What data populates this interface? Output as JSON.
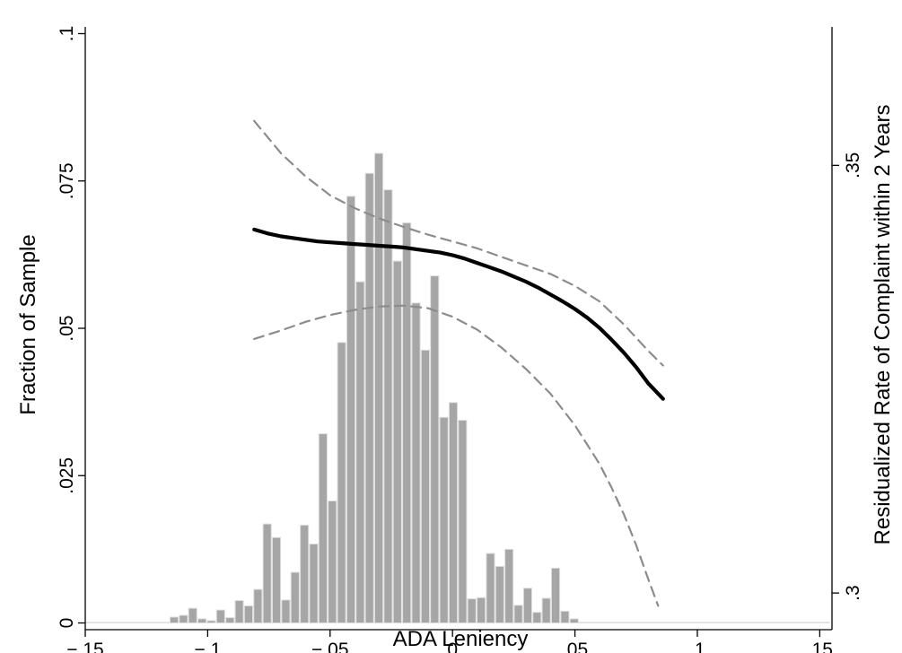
{
  "chart_data": {
    "type": "bar",
    "xlabel": "ADA Leniency",
    "ylabel": "Fraction of Sample",
    "y2label": "Residualized Rate of Complaint within 2 Years",
    "xlim": [
      -0.15,
      0.155
    ],
    "ylim": [
      0,
      0.1
    ],
    "y2lim": [
      0.2965,
      0.3654
    ],
    "x_ticks": [
      -0.15,
      -0.1,
      -0.05,
      0,
      0.05,
      0.1,
      0.15
    ],
    "x_tick_labels": [
      "−.15",
      "−.1",
      "−.05",
      "0",
      ".05",
      ".1",
      ".15"
    ],
    "y_ticks": [
      0,
      0.025,
      0.05,
      0.075,
      0.1
    ],
    "y_tick_labels": [
      "0",
      ".025",
      ".05",
      ".075",
      ".1"
    ],
    "y2_ticks": [
      0.3,
      0.35
    ],
    "y2_tick_labels": [
      ".3",
      ".35"
    ],
    "grid": false,
    "colors": {
      "bars": "#a6a6a6",
      "bar_outline": "#e0e0e0",
      "fit_line": "#000000",
      "ci_line": "#8c8c8c"
    },
    "histogram": {
      "bin_width": 0.0038,
      "bin_centers": [
        -0.1479,
        -0.1441,
        -0.1403,
        -0.1365,
        -0.1327,
        -0.1289,
        -0.1251,
        -0.1213,
        -0.1175,
        -0.1137,
        -0.1099,
        -0.1061,
        -0.1023,
        -0.0985,
        -0.0947,
        -0.0909,
        -0.0871,
        -0.0833,
        -0.0795,
        -0.0757,
        -0.0719,
        -0.0681,
        -0.0643,
        -0.0605,
        -0.0567,
        -0.0529,
        -0.0491,
        -0.0453,
        -0.0415,
        -0.0377,
        -0.0339,
        -0.0301,
        -0.0263,
        -0.0225,
        -0.0187,
        -0.0149,
        -0.0111,
        -0.0073,
        -0.0035,
        0.0003,
        0.0041,
        0.0079,
        0.0117,
        0.0155,
        0.0193,
        0.0231,
        0.0269,
        0.0307,
        0.0345,
        0.0383,
        0.0421,
        0.0459,
        0.0497,
        0.0535,
        0.0573,
        0.0611,
        0.0649,
        0.0687,
        0.0725,
        0.0763,
        0.0801,
        0.0839,
        0.0877,
        0.0915,
        0.0953,
        0.0991,
        0.1029,
        0.1067,
        0.1105,
        0.1143,
        0.1181,
        0.1219,
        0.1257,
        0.1295,
        0.1333,
        0.1371,
        0.1409,
        0.1447,
        0.1485,
        0.1523
      ],
      "fractions": [
        0.0001,
        0.0001,
        0,
        0,
        0,
        0,
        0.0001,
        0,
        0.0001,
        0.001,
        0.0013,
        0.0025,
        0.0007,
        0.0004,
        0.0022,
        0.0009,
        0.0038,
        0.0029,
        0.0057,
        0.0168,
        0.0145,
        0.0039,
        0.0086,
        0.0166,
        0.0134,
        0.0321,
        0.0207,
        0.0476,
        0.0724,
        0.0579,
        0.0763,
        0.0797,
        0.0735,
        0.0614,
        0.0679,
        0.0543,
        0.0463,
        0.0589,
        0.0349,
        0.0374,
        0.0344,
        0.0041,
        0.0043,
        0.0118,
        0.0096,
        0.0125,
        0.003,
        0.0059,
        0.0018,
        0.0042,
        0.0093,
        0.002,
        0.0007,
        0.0001,
        0,
        0,
        0,
        0,
        0,
        0.0001,
        0,
        0,
        0,
        0,
        0,
        0,
        0,
        0,
        0,
        0,
        0,
        0,
        0,
        0,
        0,
        0,
        0,
        0.0001,
        0.0001,
        0.0001
      ]
    },
    "fit_line": {
      "x": [
        -0.081,
        -0.075,
        -0.07,
        -0.065,
        -0.06,
        -0.055,
        -0.05,
        -0.045,
        -0.04,
        -0.035,
        -0.03,
        -0.025,
        -0.02,
        -0.015,
        -0.01,
        -0.005,
        0,
        0.005,
        0.01,
        0.015,
        0.02,
        0.025,
        0.03,
        0.035,
        0.04,
        0.045,
        0.05,
        0.055,
        0.06,
        0.065,
        0.07,
        0.075,
        0.08,
        0.086
      ],
      "y": [
        0.3425,
        0.342,
        0.3417,
        0.3415,
        0.3413,
        0.3411,
        0.341,
        0.3409,
        0.3408,
        0.3407,
        0.3406,
        0.3405,
        0.3404,
        0.3402,
        0.34,
        0.3398,
        0.3395,
        0.3391,
        0.3386,
        0.3381,
        0.3376,
        0.337,
        0.3364,
        0.3357,
        0.3349,
        0.3341,
        0.3332,
        0.3322,
        0.331,
        0.3296,
        0.3281,
        0.3264,
        0.3245,
        0.3227
      ]
    },
    "ci_upper": {
      "x": [
        -0.081,
        -0.07,
        -0.06,
        -0.05,
        -0.04,
        -0.03,
        -0.02,
        -0.01,
        0,
        0.01,
        0.02,
        0.03,
        0.04,
        0.05,
        0.06,
        0.07,
        0.08,
        0.086
      ],
      "y": [
        0.3552,
        0.3514,
        0.3487,
        0.3465,
        0.345,
        0.3438,
        0.3428,
        0.3419,
        0.3411,
        0.3403,
        0.3393,
        0.3383,
        0.3373,
        0.3359,
        0.3341,
        0.3314,
        0.3283,
        0.3266
      ]
    },
    "ci_lower": {
      "x": [
        -0.081,
        -0.07,
        -0.06,
        -0.05,
        -0.04,
        -0.03,
        -0.02,
        -0.01,
        0,
        0.01,
        0.02,
        0.03,
        0.04,
        0.05,
        0.06,
        0.065,
        0.07,
        0.075,
        0.08,
        0.084
      ],
      "y": [
        0.3297,
        0.3307,
        0.3317,
        0.3325,
        0.3331,
        0.3335,
        0.3336,
        0.3333,
        0.3323,
        0.3308,
        0.3287,
        0.3262,
        0.3233,
        0.3196,
        0.3151,
        0.3123,
        0.3092,
        0.3056,
        0.3016,
        0.2985
      ]
    }
  }
}
